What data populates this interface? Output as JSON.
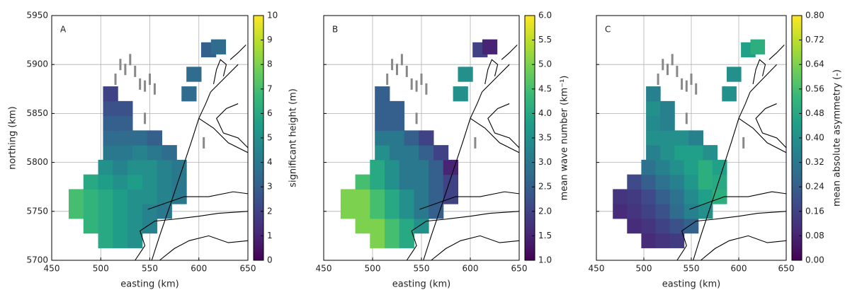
{
  "chart_data": [
    {
      "type": "scatter",
      "annotation": "A",
      "xlabel": "easting (km)",
      "ylabel": "northing (km)",
      "colorbar_label": "significant height (m)",
      "colormap": "viridis",
      "grid": true,
      "xlim": [
        450,
        650
      ],
      "ylim": [
        5700,
        5950
      ],
      "xticks": [
        450,
        500,
        550,
        600,
        650
      ],
      "yticks": [
        5700,
        5750,
        5800,
        5850,
        5900,
        5950
      ],
      "clim": [
        0,
        10
      ],
      "cticks": [
        0,
        1,
        2,
        3,
        4,
        5,
        6,
        7,
        8,
        9,
        10
      ],
      "x": [
        505,
        520,
        535,
        490,
        505,
        520,
        535,
        550,
        475,
        490,
        505,
        520,
        535,
        550,
        565,
        475,
        490,
        505,
        520,
        535,
        550,
        565,
        580,
        490,
        505,
        520,
        535,
        550,
        565,
        580,
        505,
        520,
        535,
        550,
        565,
        580,
        510,
        525,
        540,
        555,
        570,
        510,
        525,
        540,
        555,
        510,
        525,
        510,
        525,
        510,
        590,
        595,
        610,
        620
      ],
      "y": [
        5720,
        5720,
        5720,
        5735,
        5735,
        5735,
        5735,
        5735,
        5750,
        5750,
        5750,
        5750,
        5750,
        5750,
        5750,
        5765,
        5765,
        5765,
        5765,
        5765,
        5765,
        5765,
        5765,
        5780,
        5780,
        5780,
        5780,
        5780,
        5780,
        5780,
        5795,
        5795,
        5795,
        5795,
        5795,
        5795,
        5810,
        5810,
        5810,
        5810,
        5810,
        5825,
        5825,
        5825,
        5825,
        5840,
        5840,
        5855,
        5855,
        5870,
        5870,
        5890,
        5915,
        5918
      ],
      "values": [
        6,
        5.5,
        5,
        6.5,
        6,
        5.5,
        5,
        4.5,
        7,
        6.5,
        6,
        5.5,
        5,
        4.5,
        4,
        7,
        6.5,
        6,
        5.5,
        5,
        5,
        4.5,
        4,
        6,
        5.5,
        5,
        5.5,
        5,
        4.5,
        4,
        5,
        4.5,
        5,
        5,
        4.5,
        4,
        4,
        4,
        4.5,
        4,
        3.5,
        3.5,
        3.5,
        3.5,
        3,
        3,
        3,
        2.5,
        2.5,
        2,
        3.5,
        3.5,
        3,
        3.5
      ]
    },
    {
      "type": "scatter",
      "annotation": "B",
      "xlabel": "easting (km)",
      "colorbar_label": "mean wave number (km⁻¹)",
      "colormap": "viridis",
      "grid": true,
      "xlim": [
        450,
        650
      ],
      "ylim": [
        5700,
        5950
      ],
      "xticks": [
        450,
        500,
        550,
        600,
        650
      ],
      "yticks": [
        5700,
        5750,
        5800,
        5850,
        5900,
        5950
      ],
      "clim": [
        1,
        6
      ],
      "cticks": [
        {
          "value": 1,
          "label": "1.0"
        },
        1.5,
        {
          "value": 2,
          "label": "2.0"
        },
        2.5,
        {
          "value": 3,
          "label": "3.0"
        },
        3.5,
        {
          "value": 4,
          "label": "4.0"
        },
        4.5,
        {
          "value": 5,
          "label": "5.0"
        },
        5.5,
        {
          "value": 6,
          "label": "6.0"
        }
      ],
      "x": [
        505,
        520,
        535,
        490,
        505,
        520,
        535,
        550,
        475,
        490,
        505,
        520,
        535,
        550,
        565,
        475,
        490,
        505,
        520,
        535,
        550,
        565,
        580,
        490,
        505,
        520,
        535,
        550,
        565,
        580,
        505,
        520,
        535,
        550,
        565,
        580,
        510,
        525,
        540,
        555,
        570,
        510,
        525,
        540,
        555,
        510,
        525,
        510,
        525,
        510,
        590,
        595,
        610,
        620
      ],
      "y": [
        5720,
        5720,
        5720,
        5735,
        5735,
        5735,
        5735,
        5735,
        5750,
        5750,
        5750,
        5750,
        5750,
        5750,
        5750,
        5765,
        5765,
        5765,
        5765,
        5765,
        5765,
        5765,
        5765,
        5780,
        5780,
        5780,
        5780,
        5780,
        5780,
        5780,
        5795,
        5795,
        5795,
        5795,
        5795,
        5795,
        5810,
        5810,
        5810,
        5810,
        5810,
        5825,
        5825,
        5825,
        5825,
        5840,
        5840,
        5855,
        5855,
        5870,
        5870,
        5890,
        5915,
        5918
      ],
      "values": [
        5,
        4.5,
        4,
        5,
        5,
        4.5,
        4,
        3.5,
        5,
        5,
        4.5,
        4,
        3.5,
        3,
        2.5,
        5,
        5,
        4.5,
        4,
        3.5,
        3,
        2.5,
        2,
        4.5,
        4,
        3.5,
        3,
        3,
        2.5,
        2,
        4,
        3.5,
        3,
        3,
        2.5,
        1.5,
        3.5,
        3,
        3,
        2.5,
        2,
        3,
        3,
        2.5,
        2,
        2.5,
        2.5,
        2.5,
        2.5,
        2.5,
        3.5,
        3.5,
        2,
        1.5
      ]
    },
    {
      "type": "scatter",
      "annotation": "C",
      "xlabel": "easting (km)",
      "colorbar_label": "mean absolute asymmetry (-)",
      "colormap": "viridis",
      "grid": true,
      "xlim": [
        450,
        650
      ],
      "ylim": [
        5700,
        5950
      ],
      "xticks": [
        450,
        500,
        550,
        600,
        650
      ],
      "yticks": [
        5700,
        5750,
        5800,
        5850,
        5900,
        5950
      ],
      "clim": [
        0,
        0.8
      ],
      "cticks": [
        {
          "value": 0,
          "label": "0.00"
        },
        {
          "value": 0.08,
          "label": "0.08"
        },
        {
          "value": 0.16,
          "label": "0.16"
        },
        {
          "value": 0.24,
          "label": "0.24"
        },
        {
          "value": 0.32,
          "label": "0.32"
        },
        {
          "value": 0.4,
          "label": "0.40"
        },
        {
          "value": 0.48,
          "label": "0.48"
        },
        {
          "value": 0.56,
          "label": "0.56"
        },
        {
          "value": 0.64,
          "label": "0.64"
        },
        {
          "value": 0.72,
          "label": "0.72"
        },
        {
          "value": 0.8,
          "label": "0.80"
        }
      ],
      "x": [
        505,
        520,
        535,
        490,
        505,
        520,
        535,
        550,
        475,
        490,
        505,
        520,
        535,
        550,
        565,
        475,
        490,
        505,
        520,
        535,
        550,
        565,
        580,
        490,
        505,
        520,
        535,
        550,
        565,
        580,
        505,
        520,
        535,
        550,
        565,
        580,
        510,
        525,
        540,
        555,
        570,
        510,
        525,
        540,
        555,
        510,
        525,
        510,
        525,
        510,
        590,
        595,
        610,
        620
      ],
      "y": [
        5720,
        5720,
        5720,
        5735,
        5735,
        5735,
        5735,
        5735,
        5750,
        5750,
        5750,
        5750,
        5750,
        5750,
        5750,
        5765,
        5765,
        5765,
        5765,
        5765,
        5765,
        5765,
        5765,
        5780,
        5780,
        5780,
        5780,
        5780,
        5780,
        5780,
        5795,
        5795,
        5795,
        5795,
        5795,
        5795,
        5810,
        5810,
        5810,
        5810,
        5810,
        5825,
        5825,
        5825,
        5825,
        5840,
        5840,
        5855,
        5855,
        5870,
        5870,
        5890,
        5915,
        5918
      ],
      "values": [
        0.1,
        0.12,
        0.14,
        0.1,
        0.12,
        0.16,
        0.2,
        0.25,
        0.1,
        0.12,
        0.16,
        0.2,
        0.28,
        0.35,
        0.4,
        0.12,
        0.14,
        0.18,
        0.24,
        0.3,
        0.38,
        0.45,
        0.5,
        0.18,
        0.24,
        0.3,
        0.35,
        0.42,
        0.5,
        0.48,
        0.3,
        0.35,
        0.4,
        0.45,
        0.5,
        0.45,
        0.35,
        0.4,
        0.45,
        0.45,
        0.4,
        0.4,
        0.4,
        0.4,
        0.35,
        0.38,
        0.35,
        0.4,
        0.35,
        0.35,
        0.4,
        0.4,
        0.45,
        0.5
      ]
    }
  ]
}
